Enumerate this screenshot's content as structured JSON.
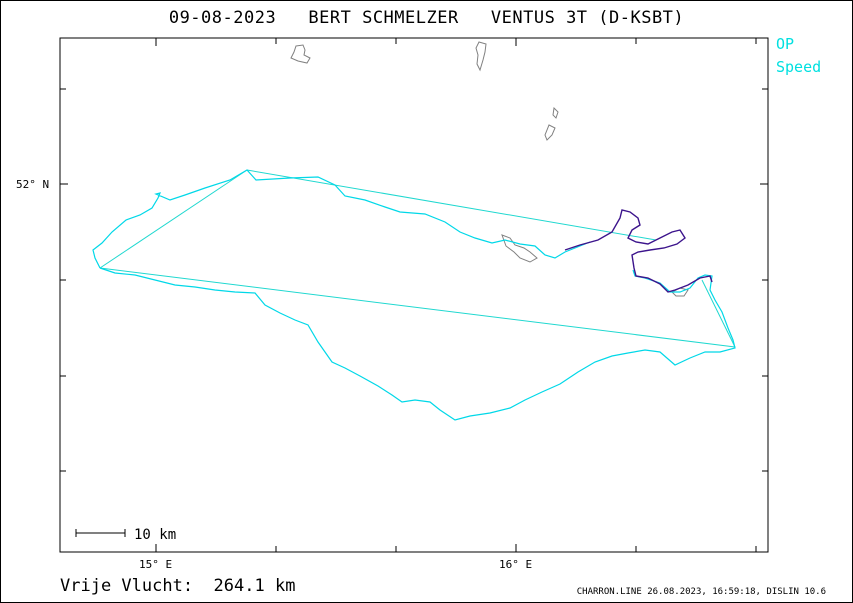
{
  "header": {
    "date": "09-08-2023",
    "pilot": "BERT SCHMELZER",
    "aircraft": "VENTUS 3T (D-KSBT)"
  },
  "legend": {
    "items": [
      {
        "label": "OP",
        "color": "#00e0e0"
      },
      {
        "label": "Speed",
        "color": "#00e0e0"
      }
    ]
  },
  "axes": {
    "lat_label": "52° N",
    "lon_labels": [
      "15° E",
      "16° E"
    ]
  },
  "scale": {
    "label": "10 km"
  },
  "footer": {
    "distance_label": "Vrije Vlucht:",
    "distance_value": "264.1 km",
    "credit": "CHARRON.LINE 26.08.2023, 16:59:18, DISLIN 10.6"
  },
  "colors": {
    "track": "#00d8e8",
    "task": "#20d8d0",
    "track_dark": "#3c148c",
    "water": "#808080"
  }
}
